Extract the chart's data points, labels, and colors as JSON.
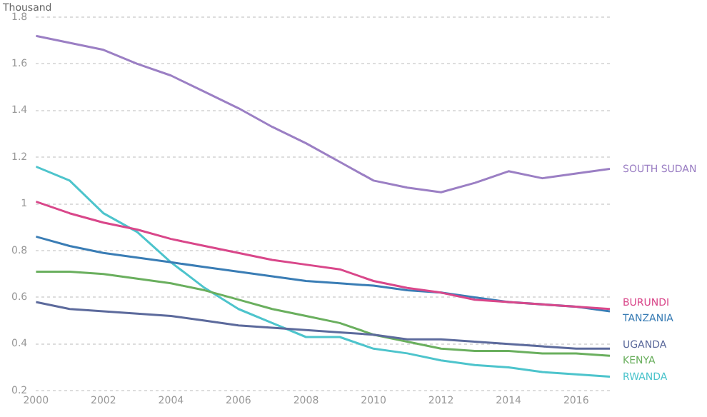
{
  "chart_data": {
    "type": "line",
    "ylabel": "Thousand",
    "x": [
      2000,
      2001,
      2002,
      2003,
      2004,
      2005,
      2006,
      2007,
      2008,
      2009,
      2010,
      2011,
      2012,
      2013,
      2014,
      2015,
      2016,
      2017
    ],
    "xlim": [
      2000,
      2017
    ],
    "xticks": [
      2000,
      2002,
      2004,
      2006,
      2008,
      2010,
      2012,
      2014,
      2016
    ],
    "ylim": [
      0.2,
      1.8
    ],
    "yticks": [
      0.2,
      0.4,
      0.6,
      0.8,
      1.0,
      1.2,
      1.4,
      1.6,
      1.8
    ],
    "grid": "y",
    "legend": false,
    "series": [
      {
        "name": "SOUTH SUDAN",
        "color": "#9b7fc4",
        "values": [
          1.72,
          1.69,
          1.66,
          1.6,
          1.55,
          1.48,
          1.41,
          1.33,
          1.26,
          1.18,
          1.1,
          1.07,
          1.05,
          1.09,
          1.14,
          1.11,
          1.13,
          1.15
        ]
      },
      {
        "name": "BURUNDI",
        "color": "#d9478a",
        "values": [
          1.01,
          0.96,
          0.92,
          0.89,
          0.85,
          0.82,
          0.79,
          0.76,
          0.74,
          0.72,
          0.67,
          0.64,
          0.62,
          0.59,
          0.58,
          0.57,
          0.56,
          0.55
        ]
      },
      {
        "name": "TANZANIA",
        "color": "#3a7db5",
        "values": [
          0.86,
          0.82,
          0.79,
          0.77,
          0.75,
          0.73,
          0.71,
          0.69,
          0.67,
          0.66,
          0.65,
          0.63,
          0.62,
          0.6,
          0.58,
          0.57,
          0.56,
          0.54
        ]
      },
      {
        "name": "UGANDA",
        "color": "#5c6a9c",
        "values": [
          0.58,
          0.55,
          0.54,
          0.53,
          0.52,
          0.5,
          0.48,
          0.47,
          0.46,
          0.45,
          0.44,
          0.42,
          0.42,
          0.41,
          0.4,
          0.39,
          0.38,
          0.38
        ]
      },
      {
        "name": "KENYA",
        "color": "#6aaf5e",
        "values": [
          0.71,
          0.71,
          0.7,
          0.68,
          0.66,
          0.63,
          0.59,
          0.55,
          0.52,
          0.49,
          0.44,
          0.41,
          0.38,
          0.37,
          0.37,
          0.36,
          0.36,
          0.35
        ]
      },
      {
        "name": "RWANDA",
        "color": "#4dc4cc",
        "values": [
          1.16,
          1.1,
          0.96,
          0.88,
          0.75,
          0.64,
          0.55,
          0.49,
          0.43,
          0.43,
          0.38,
          0.36,
          0.33,
          0.31,
          0.3,
          0.28,
          0.27,
          0.26
        ]
      }
    ]
  }
}
